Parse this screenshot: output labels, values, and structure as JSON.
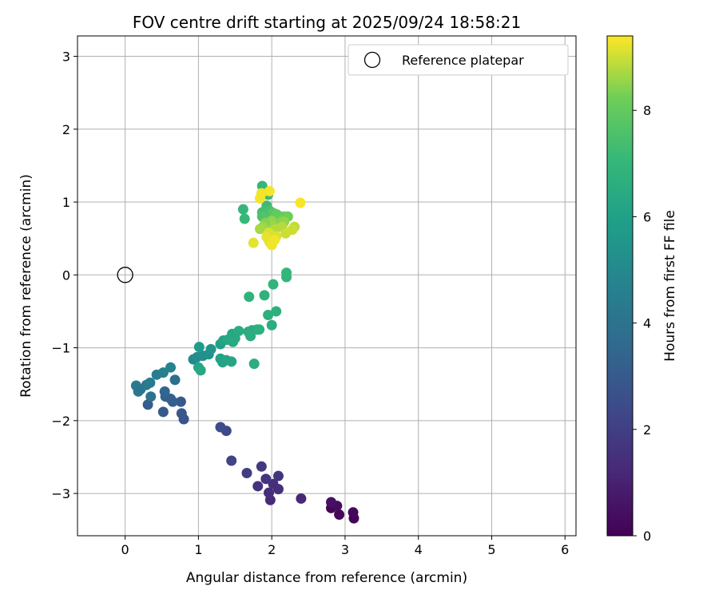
{
  "chart_data": {
    "type": "scatter",
    "title": "FOV centre drift starting at 2025/09/24 18:58:21",
    "xlabel": "Angular distance from reference (arcmin)",
    "ylabel": "Rotation from reference (arcmin)",
    "xlim": [
      -0.65,
      6.15
    ],
    "ylim": [
      -3.58,
      3.28
    ],
    "xticks": [
      0,
      1,
      2,
      3,
      4,
      5,
      6
    ],
    "yticks": [
      -3,
      -2,
      -1,
      0,
      1,
      2,
      3
    ],
    "xtick_labels": [
      "0",
      "1",
      "2",
      "3",
      "4",
      "5",
      "6"
    ],
    "ytick_labels": [
      "−3",
      "−2",
      "−1",
      "0",
      "1",
      "2",
      "3"
    ],
    "grid": true,
    "legend": {
      "position": "top-right",
      "entries": [
        "Reference platepar"
      ]
    },
    "reference_point": {
      "x": 0,
      "y": 0,
      "label": "Reference platepar"
    },
    "colorbar": {
      "label": "Hours from first FF file",
      "colormap": "viridis",
      "range": [
        0,
        9.4
      ],
      "ticks": [
        0,
        2,
        4,
        6,
        8
      ],
      "tick_labels": [
        "0",
        "2",
        "4",
        "6",
        "8"
      ]
    },
    "points": [
      {
        "x": 3.12,
        "y": -3.34,
        "t": 0.1
      },
      {
        "x": 2.81,
        "y": -3.2,
        "t": 0.15
      },
      {
        "x": 2.92,
        "y": -3.29,
        "t": 0.2
      },
      {
        "x": 3.11,
        "y": -3.26,
        "t": 0.25
      },
      {
        "x": 2.89,
        "y": -3.17,
        "t": 0.35
      },
      {
        "x": 2.81,
        "y": -3.12,
        "t": 0.5
      },
      {
        "x": 2.4,
        "y": -3.07,
        "t": 1.2
      },
      {
        "x": 1.98,
        "y": -3.09,
        "t": 1.3
      },
      {
        "x": 1.96,
        "y": -2.99,
        "t": 1.4
      },
      {
        "x": 2.09,
        "y": -2.94,
        "t": 1.45
      },
      {
        "x": 2.02,
        "y": -2.87,
        "t": 1.5
      },
      {
        "x": 1.81,
        "y": -2.9,
        "t": 1.55
      },
      {
        "x": 1.92,
        "y": -2.8,
        "t": 1.6
      },
      {
        "x": 2.09,
        "y": -2.76,
        "t": 1.65
      },
      {
        "x": 1.86,
        "y": -2.63,
        "t": 1.8
      },
      {
        "x": 1.66,
        "y": -2.72,
        "t": 1.9
      },
      {
        "x": 1.45,
        "y": -2.55,
        "t": 2.2
      },
      {
        "x": 1.38,
        "y": -2.14,
        "t": 2.4
      },
      {
        "x": 1.3,
        "y": -2.09,
        "t": 2.5
      },
      {
        "x": 0.8,
        "y": -1.98,
        "t": 2.8
      },
      {
        "x": 0.77,
        "y": -1.9,
        "t": 2.9
      },
      {
        "x": 0.52,
        "y": -1.88,
        "t": 3.0
      },
      {
        "x": 0.31,
        "y": -1.78,
        "t": 3.1
      },
      {
        "x": 0.76,
        "y": -1.74,
        "t": 3.0
      },
      {
        "x": 0.65,
        "y": -1.74,
        "t": 3.2
      },
      {
        "x": 0.55,
        "y": -1.67,
        "t": 3.3
      },
      {
        "x": 0.62,
        "y": -1.7,
        "t": 3.2
      },
      {
        "x": 0.54,
        "y": -1.6,
        "t": 3.5
      },
      {
        "x": 0.35,
        "y": -1.67,
        "t": 4.0
      },
      {
        "x": 0.18,
        "y": -1.6,
        "t": 4.2
      },
      {
        "x": 0.15,
        "y": -1.52,
        "t": 4.3
      },
      {
        "x": 0.21,
        "y": -1.57,
        "t": 4.1
      },
      {
        "x": 0.29,
        "y": -1.51,
        "t": 4.3
      },
      {
        "x": 0.34,
        "y": -1.48,
        "t": 4.4
      },
      {
        "x": 0.68,
        "y": -1.44,
        "t": 3.9
      },
      {
        "x": 0.43,
        "y": -1.37,
        "t": 4.5
      },
      {
        "x": 0.52,
        "y": -1.34,
        "t": 4.6
      },
      {
        "x": 0.62,
        "y": -1.27,
        "t": 4.7
      },
      {
        "x": 0.93,
        "y": -1.16,
        "t": 5.0
      },
      {
        "x": 0.98,
        "y": -1.13,
        "t": 5.1
      },
      {
        "x": 1.06,
        "y": -1.11,
        "t": 5.2
      },
      {
        "x": 1.14,
        "y": -1.09,
        "t": 5.3
      },
      {
        "x": 1.17,
        "y": -1.02,
        "t": 5.5
      },
      {
        "x": 1.01,
        "y": -0.99,
        "t": 5.8
      },
      {
        "x": 1.0,
        "y": -1.27,
        "t": 6.2
      },
      {
        "x": 1.03,
        "y": -1.31,
        "t": 6.3
      },
      {
        "x": 1.3,
        "y": -1.15,
        "t": 6.0
      },
      {
        "x": 1.33,
        "y": -1.2,
        "t": 6.1
      },
      {
        "x": 1.38,
        "y": -1.17,
        "t": 6.2
      },
      {
        "x": 1.45,
        "y": -1.19,
        "t": 6.2
      },
      {
        "x": 1.3,
        "y": -0.95,
        "t": 5.9
      },
      {
        "x": 1.34,
        "y": -0.9,
        "t": 6.1
      },
      {
        "x": 1.4,
        "y": -0.89,
        "t": 6.3
      },
      {
        "x": 1.47,
        "y": -0.92,
        "t": 6.4
      },
      {
        "x": 1.5,
        "y": -0.87,
        "t": 6.4
      },
      {
        "x": 1.46,
        "y": -0.81,
        "t": 6.3
      },
      {
        "x": 1.55,
        "y": -0.77,
        "t": 6.5
      },
      {
        "x": 1.68,
        "y": -0.78,
        "t": 6.5
      },
      {
        "x": 1.71,
        "y": -0.84,
        "t": 6.6
      },
      {
        "x": 1.73,
        "y": -0.76,
        "t": 6.6
      },
      {
        "x": 1.8,
        "y": -0.75,
        "t": 6.6
      },
      {
        "x": 1.83,
        "y": -0.75,
        "t": 6.7
      },
      {
        "x": 1.76,
        "y": -1.22,
        "t": 6.6
      },
      {
        "x": 2.0,
        "y": -0.69,
        "t": 6.6
      },
      {
        "x": 1.95,
        "y": -0.55,
        "t": 6.7
      },
      {
        "x": 2.06,
        "y": -0.5,
        "t": 6.7
      },
      {
        "x": 1.69,
        "y": -0.3,
        "t": 6.8
      },
      {
        "x": 1.9,
        "y": -0.28,
        "t": 6.8
      },
      {
        "x": 2.02,
        "y": -0.13,
        "t": 6.9
      },
      {
        "x": 2.2,
        "y": -0.03,
        "t": 6.9
      },
      {
        "x": 2.2,
        "y": 0.03,
        "t": 7.0
      },
      {
        "x": 1.61,
        "y": 0.9,
        "t": 7.0
      },
      {
        "x": 1.63,
        "y": 0.77,
        "t": 7.1
      },
      {
        "x": 1.87,
        "y": 1.22,
        "t": 7.0
      },
      {
        "x": 1.95,
        "y": 1.1,
        "t": 7.2
      },
      {
        "x": 1.93,
        "y": 0.95,
        "t": 7.2
      },
      {
        "x": 1.87,
        "y": 0.86,
        "t": 7.4
      },
      {
        "x": 1.87,
        "y": 0.8,
        "t": 7.6
      },
      {
        "x": 1.94,
        "y": 0.82,
        "t": 7.7
      },
      {
        "x": 1.97,
        "y": 0.88,
        "t": 7.5
      },
      {
        "x": 2.02,
        "y": 0.85,
        "t": 7.8
      },
      {
        "x": 2.04,
        "y": 0.78,
        "t": 7.9
      },
      {
        "x": 2.07,
        "y": 0.83,
        "t": 8.0
      },
      {
        "x": 2.12,
        "y": 0.8,
        "t": 8.0
      },
      {
        "x": 2.17,
        "y": 0.8,
        "t": 8.1
      },
      {
        "x": 2.22,
        "y": 0.8,
        "t": 8.2
      },
      {
        "x": 2.14,
        "y": 0.74,
        "t": 8.3
      },
      {
        "x": 2.11,
        "y": 0.71,
        "t": 8.4
      },
      {
        "x": 2.17,
        "y": 0.73,
        "t": 8.5
      },
      {
        "x": 2.0,
        "y": 0.74,
        "t": 8.5
      },
      {
        "x": 1.99,
        "y": 0.69,
        "t": 8.6
      },
      {
        "x": 1.91,
        "y": 0.71,
        "t": 8.4
      },
      {
        "x": 1.88,
        "y": 0.66,
        "t": 8.6
      },
      {
        "x": 1.84,
        "y": 0.63,
        "t": 8.7
      },
      {
        "x": 2.05,
        "y": 0.63,
        "t": 8.8
      },
      {
        "x": 2.14,
        "y": 0.66,
        "t": 8.8
      },
      {
        "x": 2.31,
        "y": 0.66,
        "t": 8.9
      },
      {
        "x": 2.28,
        "y": 0.62,
        "t": 9.0
      },
      {
        "x": 2.19,
        "y": 0.57,
        "t": 9.0
      },
      {
        "x": 2.06,
        "y": 0.53,
        "t": 9.1
      },
      {
        "x": 1.96,
        "y": 0.58,
        "t": 9.1
      },
      {
        "x": 1.93,
        "y": 0.52,
        "t": 9.2
      },
      {
        "x": 1.97,
        "y": 0.45,
        "t": 9.2
      },
      {
        "x": 2.0,
        "y": 0.41,
        "t": 9.3
      },
      {
        "x": 2.04,
        "y": 0.48,
        "t": 9.3
      },
      {
        "x": 1.75,
        "y": 0.44,
        "t": 9.2
      },
      {
        "x": 1.84,
        "y": 1.05,
        "t": 9.3
      },
      {
        "x": 1.86,
        "y": 1.12,
        "t": 9.3
      },
      {
        "x": 1.97,
        "y": 1.15,
        "t": 9.35
      },
      {
        "x": 2.39,
        "y": 0.99,
        "t": 9.35
      }
    ]
  }
}
